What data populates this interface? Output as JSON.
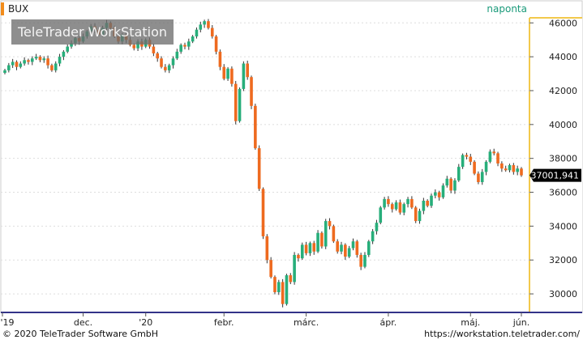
{
  "header": {
    "symbol": "BUX",
    "period": "naponta"
  },
  "watermark": "TeleTrader WorkStation",
  "footer": {
    "left": "© 2020 TeleTrader Software GmbH",
    "right": "https://workstation.teletrader.com/"
  },
  "colors": {
    "up": "#27ae7a",
    "down": "#ee6a1f",
    "axis_accent": "#f2c94c",
    "grid": "#dddddd",
    "last_price_bg": "#000000"
  },
  "chart_data": {
    "type": "candlestick",
    "title": "BUX",
    "period": "naponta",
    "y_axis": {
      "ticks": [
        "46000",
        "44000",
        "42000",
        "40000",
        "38000",
        "36000",
        "34000",
        "32000",
        "30000"
      ],
      "range": [
        29000,
        46300
      ]
    },
    "x_axis": {
      "ticks": [
        "'19",
        "dec.",
        "'20",
        "febr.",
        "márc.",
        "ápr.",
        "máj.",
        "jún."
      ]
    },
    "last_value": "37001,941",
    "closes": [
      43200,
      43500,
      43700,
      43400,
      43600,
      43800,
      43700,
      43900,
      44000,
      43800,
      43900,
      43500,
      43200,
      43600,
      44000,
      44300,
      44600,
      44800,
      45100,
      44900,
      45200,
      45500,
      45800,
      45600,
      45300,
      45700,
      46000,
      45700,
      45200,
      44900,
      45300,
      45000,
      44700,
      44500,
      44900,
      44600,
      45000,
      44600,
      44200,
      43900,
      43400,
      43200,
      43500,
      43900,
      44300,
      44700,
      44600,
      44900,
      45200,
      45600,
      45900,
      46100,
      45700,
      45200,
      44300,
      43400,
      42700,
      43300,
      42400,
      40200,
      42100,
      43600,
      42800,
      41100,
      38600,
      36200,
      33400,
      32000,
      31000,
      30100,
      30700,
      29400,
      31100,
      30700,
      32300,
      32100,
      32900,
      32400,
      33000,
      32500,
      33600,
      32800,
      34300,
      34000,
      33100,
      32500,
      32900,
      32200,
      32700,
      33100,
      32300,
      31600,
      32300,
      33100,
      33700,
      34200,
      35100,
      35600,
      35300,
      35000,
      35400,
      34800,
      35300,
      35600,
      35100,
      34300,
      34900,
      35500,
      35200,
      35800,
      36000,
      35700,
      36400,
      36800,
      36100,
      36700,
      37500,
      38200,
      38100,
      37800,
      37100,
      36600,
      37200,
      37800,
      38400,
      38300,
      37700,
      37400,
      37300,
      37600,
      37200,
      37400,
      37000
    ]
  }
}
